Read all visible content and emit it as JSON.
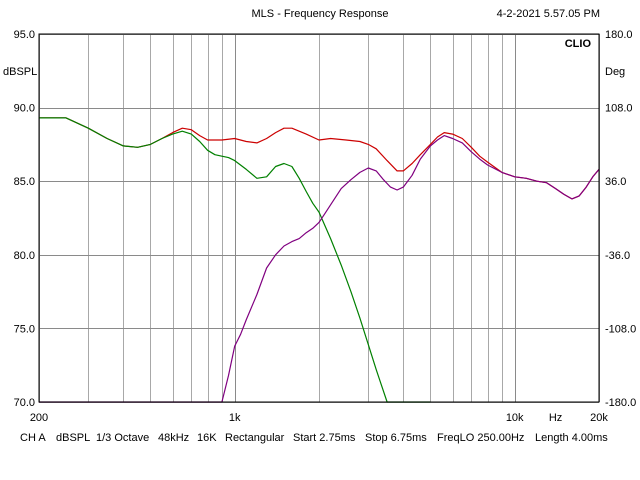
{
  "header": {
    "title": "MLS - Frequency Response",
    "datetime": "4-2-2021 5.57.05 PM",
    "brand": "CLIO"
  },
  "footer": {
    "items": [
      "CH A",
      "dBSPL",
      "1/3 Octave",
      "48kHz",
      "16K",
      "Rectangular",
      "Start 2.75ms",
      "Stop 6.75ms",
      "FreqLO 250.00Hz",
      "Length 4.00ms"
    ]
  },
  "chart_data": {
    "type": "line",
    "title": "MLS - Frequency Response",
    "x_scale": "log",
    "xlim": [
      200,
      20000
    ],
    "x_tick_labels": [
      {
        "value": 200,
        "label": "200"
      },
      {
        "value": 1000,
        "label": "1k"
      },
      {
        "value": 10000,
        "label": "10k"
      },
      {
        "value": 14000,
        "label": "Hz"
      },
      {
        "value": 20000,
        "label": "20k"
      }
    ],
    "x_gridlines": [
      200,
      300,
      400,
      500,
      600,
      700,
      800,
      900,
      1000,
      2000,
      3000,
      4000,
      5000,
      6000,
      7000,
      8000,
      9000,
      10000,
      20000
    ],
    "ylabel": "dBSPL",
    "ylim": [
      70,
      95
    ],
    "y_ticks": [
      "95.0",
      "90.0",
      "85.0",
      "80.0",
      "75.0",
      "70.0"
    ],
    "y_tick_values": [
      95,
      90,
      85,
      80,
      75,
      70
    ],
    "y2label": "Deg",
    "y2lim": [
      -180,
      180
    ],
    "y2_ticks": [
      "180.0",
      "108.0",
      "36.0",
      "-36.0",
      "-108.0",
      "-180.0"
    ],
    "y2_tick_values": [
      180,
      108,
      36,
      -36,
      -108,
      -180
    ],
    "grid": true,
    "series": [
      {
        "color": "#cc0000",
        "x": [
          200,
          250,
          300,
          350,
          400,
          450,
          500,
          550,
          600,
          650,
          700,
          750,
          800,
          850,
          900,
          1000,
          1100,
          1200,
          1300,
          1400,
          1500,
          1600,
          1700,
          1800,
          2000,
          2200,
          2500,
          2800,
          3000,
          3200,
          3500,
          3800,
          4000,
          4300,
          4600,
          5000,
          5300,
          5600,
          6000,
          6500,
          7000,
          7500,
          8000,
          9000,
          10000,
          11000,
          12000,
          13000,
          14000,
          15000,
          16000,
          17000,
          18000,
          19000,
          20000
        ],
        "y": [
          89.3,
          89.3,
          88.6,
          87.9,
          87.4,
          87.3,
          87.5,
          87.9,
          88.3,
          88.6,
          88.5,
          88.1,
          87.8,
          87.8,
          87.8,
          87.9,
          87.7,
          87.6,
          87.9,
          88.3,
          88.6,
          88.6,
          88.4,
          88.2,
          87.8,
          87.9,
          87.8,
          87.7,
          87.5,
          87.2,
          86.4,
          85.7,
          85.7,
          86.2,
          86.8,
          87.5,
          88.0,
          88.3,
          88.2,
          87.9,
          87.3,
          86.7,
          86.3,
          85.6,
          85.3,
          85.2,
          85.0,
          84.9,
          84.5,
          84.1,
          83.8,
          84.0,
          84.6,
          85.3,
          85.8
        ]
      },
      {
        "color": "#008000",
        "x": [
          200,
          250,
          300,
          350,
          400,
          450,
          500,
          550,
          600,
          650,
          700,
          750,
          800,
          850,
          900,
          950,
          1000,
          1100,
          1200,
          1300,
          1400,
          1500,
          1600,
          1700,
          1800,
          1900,
          2000,
          2200,
          2400,
          2600,
          2800,
          3000,
          3200,
          3500,
          4000,
          5000
        ],
        "y": [
          89.3,
          89.3,
          88.6,
          87.9,
          87.4,
          87.3,
          87.5,
          87.9,
          88.2,
          88.4,
          88.2,
          87.7,
          87.1,
          86.8,
          86.7,
          86.6,
          86.4,
          85.8,
          85.2,
          85.3,
          86.0,
          86.2,
          86.0,
          85.2,
          84.3,
          83.5,
          82.9,
          81.1,
          79.3,
          77.5,
          75.7,
          73.9,
          72.2,
          70.0,
          70.0,
          70.0
        ],
        "y_note": "values at the bottom of the axis are clipped at 70"
      },
      {
        "color": "#800080",
        "x": [
          200,
          500,
          900,
          950,
          1000,
          1050,
          1100,
          1200,
          1300,
          1400,
          1500,
          1600,
          1700,
          1800,
          1900,
          2000,
          2100,
          2200,
          2400,
          2600,
          2800,
          3000,
          3200,
          3400,
          3600,
          3800,
          4000,
          4300,
          4600,
          5000,
          5300,
          5600,
          6000,
          6500,
          7000,
          7500,
          8000,
          9000,
          10000,
          11000,
          12000,
          13000,
          14000,
          15000,
          16000,
          17000,
          18000,
          19000,
          20000
        ],
        "y": [
          70.0,
          70.0,
          70.0,
          71.8,
          73.8,
          74.6,
          75.6,
          77.3,
          79.1,
          80.0,
          80.6,
          80.9,
          81.1,
          81.5,
          81.8,
          82.2,
          82.8,
          83.4,
          84.5,
          85.1,
          85.6,
          85.9,
          85.7,
          85.1,
          84.6,
          84.4,
          84.6,
          85.4,
          86.5,
          87.4,
          87.8,
          88.1,
          87.9,
          87.6,
          87.0,
          86.5,
          86.1,
          85.6,
          85.3,
          85.2,
          85.0,
          84.9,
          84.5,
          84.1,
          83.8,
          84.0,
          84.6,
          85.3,
          85.8
        ]
      }
    ]
  }
}
